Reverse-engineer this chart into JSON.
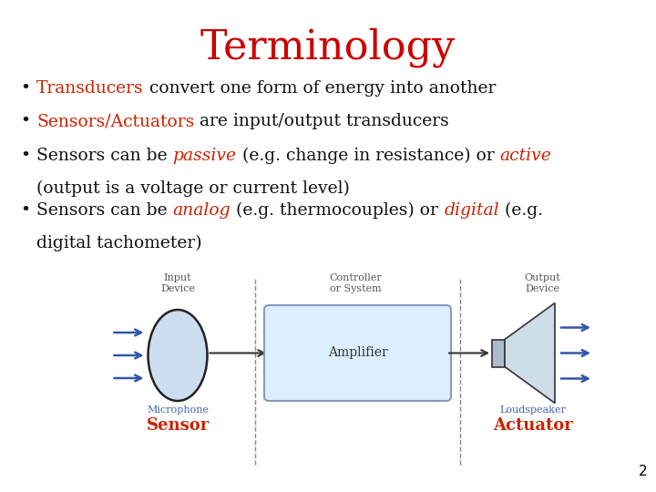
{
  "title": "Terminology",
  "title_color": "#cc0000",
  "title_fontsize": 32,
  "background_color": "#ffffff",
  "page_number": "2",
  "diagram": {
    "input_label": "Input\nDevice",
    "controller_label": "Controller\nor System",
    "output_label": "Output\nDevice",
    "amplifier_label": "Amplifier",
    "microphone_sublabel": "Microphone",
    "sensor_label": "Sensor",
    "loudspeaker_sublabel": "Loudspeaker",
    "actuator_label": "Actuator",
    "arrow_color": "#3355aa",
    "box_facecolor": "#ddeeff",
    "box_edgecolor": "#8899bb",
    "circle_facecolor": "#ccddf0",
    "circle_edgecolor": "#222222",
    "connect_color": "#333333",
    "label_color": "#4466aa",
    "red_label_color": "#cc2200",
    "gray_label_color": "#555555"
  }
}
